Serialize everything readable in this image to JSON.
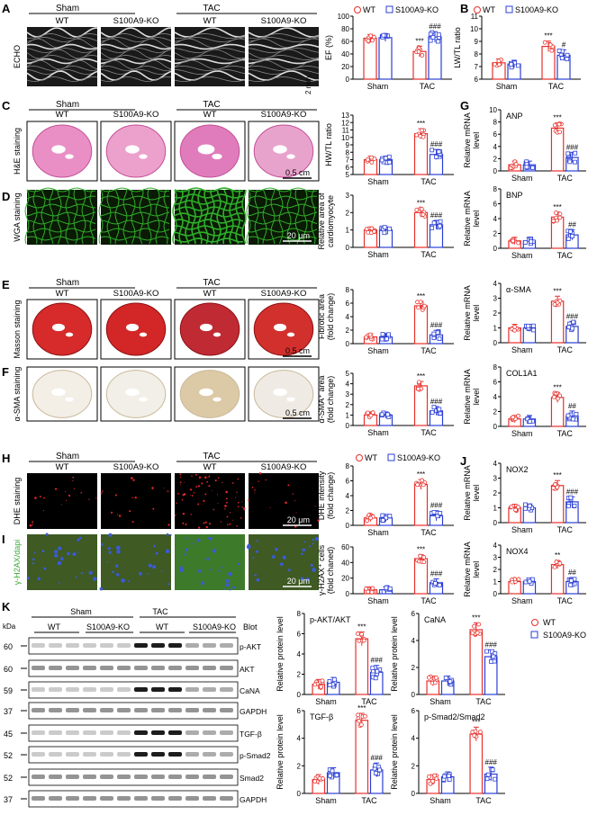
{
  "panels": {
    "A": {
      "letter": "A",
      "groups": [
        "Sham",
        "TAC"
      ],
      "cols": [
        "WT",
        "S100A9-KO",
        "WT",
        "S100A9-KO"
      ],
      "side": "ECHO",
      "scale": "2 mm"
    },
    "C": {
      "letter": "C",
      "groups": [
        "Sham",
        "TAC"
      ],
      "cols": [
        "WT",
        "S100A9-KO",
        "WT",
        "S100A9-KO"
      ],
      "side": "H&E staining",
      "scale": "0.5 cm"
    },
    "D": {
      "letter": "D",
      "side": "WGA staining",
      "scale": "20 μm"
    },
    "E": {
      "letter": "E",
      "groups": [
        "Sham",
        "TAC"
      ],
      "cols": [
        "WT",
        "S100A9-KO",
        "WT",
        "S100A9-KO"
      ],
      "side": "Masson staining",
      "scale": "0.5 cm"
    },
    "F": {
      "letter": "F",
      "side": "α-SMA staining",
      "scale": "0.5 cm"
    },
    "H": {
      "letter": "H",
      "groups": [
        "Sham",
        "TAC"
      ],
      "cols": [
        "WT",
        "S100A9-KO",
        "WT",
        "S100A9-KO"
      ],
      "side": "DHE staining",
      "scale": "20 μm"
    },
    "I": {
      "letter": "I",
      "side": "γ-H2AX/dapi",
      "scale": "20 μm"
    },
    "K": {
      "letter": "K",
      "kda": "kDa",
      "groups": [
        "Sham",
        "TAC"
      ],
      "cols": [
        "WT",
        "S100A9-KO",
        "WT",
        "S100A9-KO"
      ],
      "blot": "Blot",
      "bands": [
        [
          "60",
          "p-AKT"
        ],
        [
          "60",
          "AKT"
        ],
        [
          "59",
          "CaNA"
        ],
        [
          "37",
          "GAPDH"
        ],
        [
          "45",
          "TGF-β"
        ],
        [
          "52",
          "p-Smad2"
        ],
        [
          "52",
          "Smad2"
        ],
        [
          "37",
          "GAPDH"
        ]
      ]
    },
    "B": {
      "letter": "B"
    },
    "G": {
      "letter": "G"
    },
    "J": {
      "letter": "J"
    }
  },
  "legend": {
    "wt": "WT",
    "ko": "S100A9-KO"
  },
  "colors": {
    "wt": "#e8302c",
    "ko": "#2b3fd6"
  },
  "chart_data": [
    {
      "type": "bar",
      "ylabel": "EF (%)",
      "ylim": [
        0,
        100
      ],
      "yticks": [
        0,
        20,
        40,
        60,
        80,
        100
      ],
      "categories": [
        "Sham",
        "TAC"
      ],
      "series": [
        {
          "name": "WT",
          "values": [
            65,
            44
          ]
        },
        {
          "name": "S100A9-KO",
          "values": [
            66,
            67
          ]
        }
      ],
      "annotations": {
        "tac_wt": "***",
        "tac_ko": "###"
      }
    },
    {
      "type": "bar",
      "ylabel": "LW/TL ratio",
      "ylim": [
        6,
        11
      ],
      "yticks": [
        6,
        7,
        8,
        9,
        10,
        11
      ],
      "categories": [
        "Sham",
        "TAC"
      ],
      "series": [
        {
          "name": "WT",
          "values": [
            7.3,
            8.6
          ]
        },
        {
          "name": "S100A9-KO",
          "values": [
            7.2,
            7.9
          ]
        }
      ],
      "annotations": {
        "tac_wt": "***",
        "tac_ko": "#"
      }
    },
    {
      "type": "bar",
      "ylabel": "HW/TL ratio",
      "ylim": [
        5,
        13
      ],
      "yticks": [
        5,
        6,
        7,
        8,
        9,
        10,
        11,
        12,
        13
      ],
      "categories": [
        "Sham",
        "TAC"
      ],
      "series": [
        {
          "name": "WT",
          "values": [
            7.0,
            10.5
          ]
        },
        {
          "name": "S100A9-KO",
          "values": [
            7.0,
            7.7
          ]
        }
      ],
      "annotations": {
        "tac_wt": "***",
        "tac_ko": "###"
      }
    },
    {
      "type": "bar",
      "ylabel": "Relative area of cardiomyocyte",
      "ylim": [
        0,
        3
      ],
      "yticks": [
        0,
        1,
        2,
        3
      ],
      "categories": [
        "Sham",
        "TAC"
      ],
      "series": [
        {
          "name": "WT",
          "values": [
            1.0,
            2.0
          ]
        },
        {
          "name": "S100A9-KO",
          "values": [
            1.0,
            1.3
          ]
        }
      ],
      "annotations": {
        "tac_wt": "***",
        "tac_ko": "###"
      }
    },
    {
      "type": "bar",
      "ylabel": "Fibrotic area (fold change)",
      "ylim": [
        0,
        8
      ],
      "yticks": [
        0,
        2,
        4,
        6,
        8
      ],
      "categories": [
        "Sham",
        "TAC"
      ],
      "series": [
        {
          "name": "WT",
          "values": [
            1.0,
            5.6
          ]
        },
        {
          "name": "S100A9-KO",
          "values": [
            1.0,
            1.3
          ]
        }
      ],
      "annotations": {
        "tac_wt": "***",
        "tac_ko": "###"
      }
    },
    {
      "type": "bar",
      "ylabel": "α-SMA⁺ area (fold change)",
      "ylim": [
        0,
        5
      ],
      "yticks": [
        0,
        1,
        2,
        3,
        4,
        5
      ],
      "categories": [
        "Sham",
        "TAC"
      ],
      "series": [
        {
          "name": "WT",
          "values": [
            1.0,
            3.8
          ]
        },
        {
          "name": "S100A9-KO",
          "values": [
            1.0,
            1.4
          ]
        }
      ],
      "annotations": {
        "tac_wt": "***",
        "tac_ko": "###"
      }
    },
    {
      "type": "bar",
      "ylabel": "Relative mRNA level",
      "title": "ANP",
      "ylim": [
        0,
        10
      ],
      "yticks": [
        0,
        2,
        4,
        6,
        8,
        10
      ],
      "categories": [
        "Sham",
        "TAC"
      ],
      "series": [
        {
          "name": "WT",
          "values": [
            1.0,
            7.0
          ]
        },
        {
          "name": "S100A9-KO",
          "values": [
            1.0,
            2.2
          ]
        }
      ],
      "annotations": {
        "tac_wt": "***",
        "tac_ko": "###"
      }
    },
    {
      "type": "bar",
      "ylabel": "Relative mRNA level",
      "title": "BNP",
      "ylim": [
        0,
        8
      ],
      "yticks": [
        0,
        2,
        4,
        6,
        8
      ],
      "categories": [
        "Sham",
        "TAC"
      ],
      "series": [
        {
          "name": "WT",
          "values": [
            1.0,
            4.2
          ]
        },
        {
          "name": "S100A9-KO",
          "values": [
            1.0,
            1.8
          ]
        }
      ],
      "annotations": {
        "tac_wt": "***",
        "tac_ko": "##"
      }
    },
    {
      "type": "bar",
      "ylabel": "Relative mRNA level",
      "title": "α-SMA",
      "ylim": [
        0,
        4
      ],
      "yticks": [
        0,
        1,
        2,
        3,
        4
      ],
      "categories": [
        "Sham",
        "TAC"
      ],
      "series": [
        {
          "name": "WT",
          "values": [
            1.0,
            2.8
          ]
        },
        {
          "name": "S100A9-KO",
          "values": [
            1.0,
            1.1
          ]
        }
      ],
      "annotations": {
        "tac_wt": "***",
        "tac_ko": "###"
      }
    },
    {
      "type": "bar",
      "ylabel": "Relative mRNA level",
      "title": "COL1A1",
      "ylim": [
        0,
        8
      ],
      "yticks": [
        0,
        2,
        4,
        6,
        8
      ],
      "categories": [
        "Sham",
        "TAC"
      ],
      "series": [
        {
          "name": "WT",
          "values": [
            1.0,
            3.9
          ]
        },
        {
          "name": "S100A9-KO",
          "values": [
            1.0,
            1.4
          ]
        }
      ],
      "annotations": {
        "tac_wt": "***",
        "tac_ko": "##"
      }
    },
    {
      "type": "bar",
      "ylabel": "DHE intensity (fold change)",
      "ylim": [
        0,
        8
      ],
      "yticks": [
        0,
        2,
        4,
        6,
        8
      ],
      "categories": [
        "Sham",
        "TAC"
      ],
      "series": [
        {
          "name": "WT",
          "values": [
            1.0,
            5.5
          ]
        },
        {
          "name": "S100A9-KO",
          "values": [
            1.0,
            1.3
          ]
        }
      ],
      "annotations": {
        "tac_wt": "***",
        "tac_ko": "###"
      }
    },
    {
      "type": "bar",
      "ylabel": "γ-H2AX⁺ cells (fold chaned)",
      "ylim": [
        0,
        60
      ],
      "yticks": [
        0,
        20,
        40,
        60
      ],
      "categories": [
        "Sham",
        "TAC"
      ],
      "series": [
        {
          "name": "WT",
          "values": [
            5,
            45
          ]
        },
        {
          "name": "S100A9-KO",
          "values": [
            5,
            14
          ]
        }
      ],
      "annotations": {
        "tac_wt": "***",
        "tac_ko": "###"
      }
    },
    {
      "type": "bar",
      "ylabel": "Relative mRNA level",
      "title": "NOX2",
      "ylim": [
        0,
        4
      ],
      "yticks": [
        0,
        1,
        2,
        3,
        4
      ],
      "categories": [
        "Sham",
        "TAC"
      ],
      "series": [
        {
          "name": "WT",
          "values": [
            1.0,
            2.5
          ]
        },
        {
          "name": "S100A9-KO",
          "values": [
            1.0,
            1.4
          ]
        }
      ],
      "annotations": {
        "tac_wt": "***",
        "tac_ko": "###"
      }
    },
    {
      "type": "bar",
      "ylabel": "Relative mRNA level",
      "title": "NOX4",
      "ylim": [
        0,
        4
      ],
      "yticks": [
        0,
        1,
        2,
        3,
        4
      ],
      "categories": [
        "Sham",
        "TAC"
      ],
      "series": [
        {
          "name": "WT",
          "values": [
            1.0,
            2.4
          ]
        },
        {
          "name": "S100A9-KO",
          "values": [
            1.0,
            1.0
          ]
        }
      ],
      "annotations": {
        "tac_wt": "**",
        "tac_ko": "##"
      }
    },
    {
      "type": "bar",
      "ylabel": "Relative protein level",
      "title": "p-AKT/AKT",
      "ylim": [
        0,
        8
      ],
      "yticks": [
        0,
        2,
        4,
        6,
        8
      ],
      "categories": [
        "Sham",
        "TAC"
      ],
      "series": [
        {
          "name": "WT",
          "values": [
            1.0,
            5.5
          ]
        },
        {
          "name": "S100A9-KO",
          "values": [
            1.2,
            2.2
          ]
        }
      ],
      "annotations": {
        "tac_wt": "***",
        "tac_ko": "###"
      }
    },
    {
      "type": "bar",
      "ylabel": "Relative protein level",
      "title": "CaNA",
      "ylim": [
        0,
        6
      ],
      "yticks": [
        0,
        2,
        4,
        6
      ],
      "categories": [
        "Sham",
        "TAC"
      ],
      "series": [
        {
          "name": "WT",
          "values": [
            1.0,
            4.8
          ]
        },
        {
          "name": "S100A9-KO",
          "values": [
            1.0,
            2.8
          ]
        }
      ],
      "annotations": {
        "tac_wt": "***",
        "tac_ko": "###"
      }
    },
    {
      "type": "bar",
      "ylabel": "Relative protein level",
      "title": "TGF-β",
      "ylim": [
        0,
        6
      ],
      "yticks": [
        0,
        2,
        4,
        6
      ],
      "categories": [
        "Sham",
        "TAC"
      ],
      "series": [
        {
          "name": "WT",
          "values": [
            1.0,
            5.3
          ]
        },
        {
          "name": "S100A9-KO",
          "values": [
            1.5,
            1.7
          ]
        }
      ],
      "annotations": {
        "tac_wt": "***",
        "tac_ko": "###"
      }
    },
    {
      "type": "bar",
      "ylabel": "Relative protein level",
      "title": "p-Smad2/Smad2",
      "ylim": [
        0,
        6
      ],
      "yticks": [
        0,
        2,
        4,
        6
      ],
      "categories": [
        "Sham",
        "TAC"
      ],
      "series": [
        {
          "name": "WT",
          "values": [
            1.0,
            4.3
          ]
        },
        {
          "name": "S100A9-KO",
          "values": [
            1.2,
            1.4
          ]
        }
      ],
      "annotations": {
        "tac_wt": "***",
        "tac_ko": "###"
      }
    }
  ]
}
